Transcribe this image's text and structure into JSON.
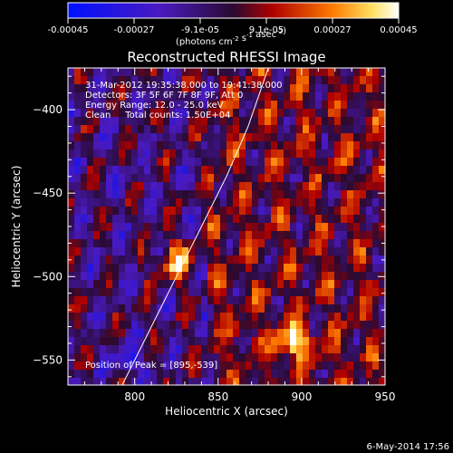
{
  "chart_data": {
    "type": "heatmap",
    "title": "Reconstructed RHESSI Image",
    "xlabel": "Heliocentric X (arcsec)",
    "ylabel": "Heliocentric Y (arcsec)",
    "xlim": [
      760,
      950
    ],
    "ylim": [
      -565,
      -375
    ],
    "xticks": [
      800,
      850,
      900,
      950
    ],
    "yticks": [
      -400,
      -450,
      -500,
      -550
    ],
    "colorbar": {
      "min": -0.00045,
      "max": 0.00045,
      "tick_labels": [
        "-0.00045",
        "-0.00027",
        "-9.1e-05",
        "9.1e-05",
        "0.00027",
        "0.00045"
      ],
      "unit": "(photons cm-2 s-1 asec-2)"
    },
    "annotations": [
      "31-Mar-2012 19:35:38.000 to 19:41:38.000",
      "Detectors: 3F 5F 6F 7F 8F 9F, Att 0",
      "Energy Range: 12.0 - 25.0 keV",
      "Clean     Total counts: 1.50E+04",
      "Position of Peak = [895,-539]"
    ],
    "peak": {
      "x": 895,
      "y": -539
    },
    "limb_curve": [
      [
        790,
        -570
      ],
      [
        810,
        -530
      ],
      [
        825,
        -500
      ],
      [
        840,
        -470
      ],
      [
        855,
        -440
      ],
      [
        868,
        -410
      ],
      [
        880,
        -375
      ]
    ],
    "footer": "6-May-2014 17:56",
    "grid": false
  }
}
